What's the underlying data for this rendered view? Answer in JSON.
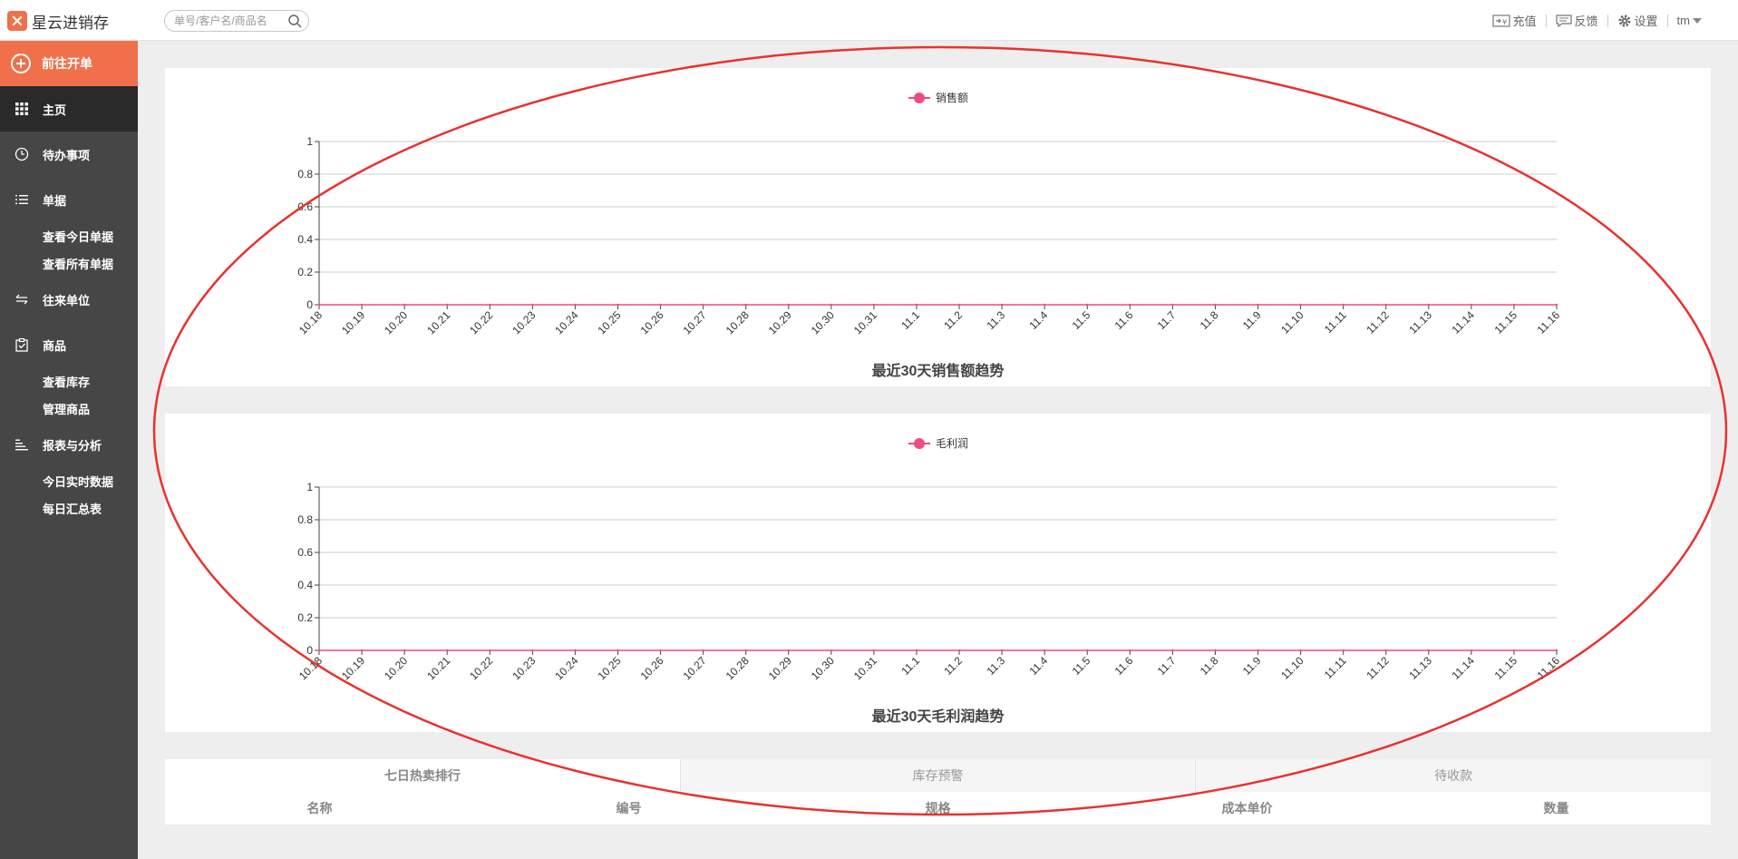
{
  "app": {
    "title": "星云进销存"
  },
  "search": {
    "placeholder": "单号/客户名/商品名"
  },
  "top_actions": {
    "recharge": "充值",
    "feedback": "反馈",
    "settings": "设置",
    "user": "tm"
  },
  "sidebar": {
    "new_order": "前往开单",
    "home": "主页",
    "todo": "待办事项",
    "documents": "单据",
    "view_today_documents": "查看今日单据",
    "view_all_documents": "查看所有单据",
    "partners": "往来单位",
    "goods": "商品",
    "view_inventory": "查看库存",
    "manage_goods": "管理商品",
    "reports": "报表与分析",
    "today_realtime": "今日实时数据",
    "daily_summary": "每日汇总表"
  },
  "chart_data": [
    {
      "type": "line",
      "title": "最近30天销售额趋势",
      "series": [
        {
          "name": "销售额",
          "values": [
            0,
            0,
            0,
            0,
            0,
            0,
            0,
            0,
            0,
            0,
            0,
            0,
            0,
            0,
            0,
            0,
            0,
            0,
            0,
            0,
            0,
            0,
            0,
            0,
            0,
            0,
            0,
            0,
            0,
            0
          ]
        }
      ],
      "categories": [
        "10.18",
        "10.19",
        "10.20",
        "10.21",
        "10.22",
        "10.23",
        "10.24",
        "10.25",
        "10.26",
        "10.27",
        "10.28",
        "10.29",
        "10.30",
        "10.31",
        "11.1",
        "11.2",
        "11.3",
        "11.4",
        "11.5",
        "11.6",
        "11.7",
        "11.8",
        "11.9",
        "11.10",
        "11.11",
        "11.12",
        "11.13",
        "11.14",
        "11.15",
        "11.16"
      ],
      "yticks": [
        "0",
        "0.2",
        "0.4",
        "0.6",
        "0.8",
        "1"
      ],
      "ylim": [
        0,
        1
      ],
      "color": "#ee4a84",
      "grid": true,
      "legend": "top-center"
    },
    {
      "type": "line",
      "title": "最近30天毛利润趋势",
      "series": [
        {
          "name": "毛利润",
          "values": [
            0,
            0,
            0,
            0,
            0,
            0,
            0,
            0,
            0,
            0,
            0,
            0,
            0,
            0,
            0,
            0,
            0,
            0,
            0,
            0,
            0,
            0,
            0,
            0,
            0,
            0,
            0,
            0,
            0,
            0
          ]
        }
      ],
      "categories": [
        "10.18",
        "10.19",
        "10.20",
        "10.21",
        "10.22",
        "10.23",
        "10.24",
        "10.25",
        "10.26",
        "10.27",
        "10.28",
        "10.29",
        "10.30",
        "10.31",
        "11.1",
        "11.2",
        "11.3",
        "11.4",
        "11.5",
        "11.6",
        "11.7",
        "11.8",
        "11.9",
        "11.10",
        "11.11",
        "11.12",
        "11.13",
        "11.14",
        "11.15",
        "11.16"
      ],
      "yticks": [
        "0",
        "0.2",
        "0.4",
        "0.6",
        "0.8",
        "1"
      ],
      "ylim": [
        0,
        1
      ],
      "color": "#ee4a84",
      "grid": true,
      "legend": "top-center"
    }
  ],
  "bottom_tabs": [
    "七日热卖排行",
    "库存预警",
    "待收款"
  ],
  "table_headers": [
    "名称",
    "编号",
    "规格",
    "成本单价",
    "数量"
  ],
  "annotation": {
    "color": "#e8322e"
  }
}
